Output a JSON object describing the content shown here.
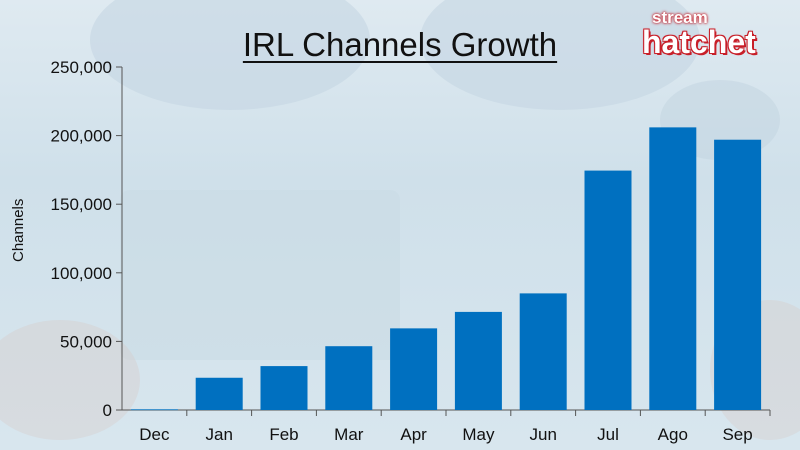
{
  "chart_data": {
    "type": "bar",
    "title": "IRL Channels Growth",
    "xlabel": "",
    "ylabel": "Channels",
    "categories": [
      "Dec",
      "Jan",
      "Feb",
      "Mar",
      "Apr",
      "May",
      "Jun",
      "Jul",
      "Ago",
      "Sep"
    ],
    "values": [
      500,
      23500,
      32000,
      46500,
      59500,
      71500,
      85000,
      174500,
      206000,
      197000
    ],
    "ylim": [
      0,
      250000
    ],
    "yticks": [
      0,
      50000,
      100000,
      150000,
      200000,
      250000
    ],
    "ytick_labels": [
      "0",
      "50,000",
      "100,000",
      "150,000",
      "200,000",
      "250,000"
    ],
    "bar_color": "#0070c0",
    "grid": false
  },
  "logo": {
    "top_text": "stream",
    "main_text": "hatchet",
    "color": "#d6282f"
  }
}
